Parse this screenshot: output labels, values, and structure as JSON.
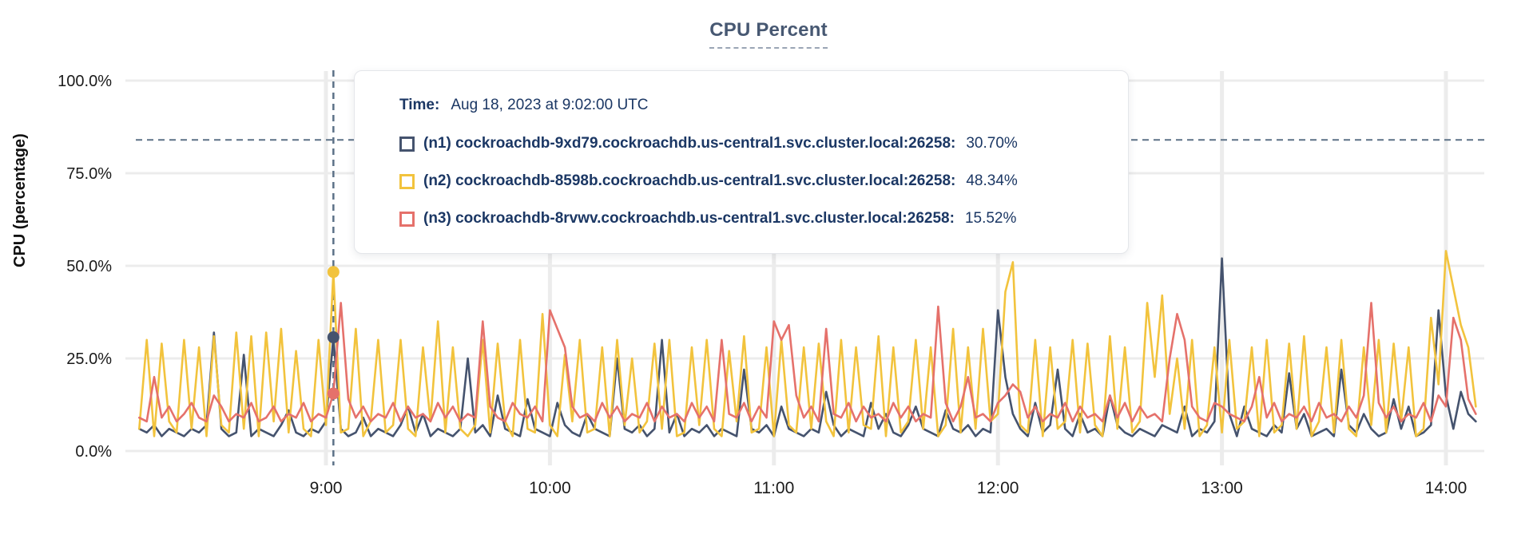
{
  "colors": {
    "accent_slate": "#475872",
    "grid": "#ececec",
    "dashed_guides": "#5c7187",
    "tick_text": "#1a1a1a",
    "tooltip_text": "#1b3764"
  },
  "tooltip": {
    "time_heading": "Time:",
    "time_label": "Aug 18, 2023 at 9:02:00 UTC",
    "rows": [
      {
        "id": "n1",
        "label": "(n1) cockroachdb-9xd79.cockroachdb.us-central1.svc.cluster.local:26258:",
        "value": "30.70%",
        "pct": 30.7,
        "color": "#45536e"
      },
      {
        "id": "n2",
        "label": "(n2) cockroachdb-8598b.cockroachdb.us-central1.svc.cluster.local:26258:",
        "value": "48.34%",
        "pct": 48.34,
        "color": "#f2c33d"
      },
      {
        "id": "n3",
        "label": "(n3) cockroachdb-8rvwv.cockroachdb.us-central1.svc.cluster.local:26258:",
        "value": "15.52%",
        "pct": 15.52,
        "color": "#e5716b"
      }
    ]
  },
  "chart_data": {
    "type": "line",
    "title": "CPU Percent",
    "ylabel": "CPU (percentage)",
    "xlabel": "",
    "ylim": [
      0,
      100
    ],
    "grid": true,
    "legend_position": "tooltip-overlay",
    "y_ticks": [
      {
        "v": 100,
        "label": "100.0%"
      },
      {
        "v": 75,
        "label": "75.0%"
      },
      {
        "v": 50,
        "label": "50.0%"
      },
      {
        "v": 25,
        "label": "25.0%"
      },
      {
        "v": 0,
        "label": "0.0%"
      }
    ],
    "x_ticks": [
      {
        "minutes": 60,
        "label": "9:00"
      },
      {
        "minutes": 120,
        "label": "10:00"
      },
      {
        "minutes": 180,
        "label": "11:00"
      },
      {
        "minutes": 240,
        "label": "12:00"
      },
      {
        "minutes": 300,
        "label": "13:00"
      },
      {
        "minutes": 360,
        "label": "14:00"
      }
    ],
    "x_start_minutes": 10,
    "x_step_minutes": 2,
    "threshold_pct": 84,
    "hover": {
      "minutes": 62,
      "time_label": "Aug 18, 2023 at 9:02:00 UTC"
    },
    "series": [
      {
        "id": "n1",
        "name": "(n1) cockroachdb-9xd79.cockroachdb.us-central1.svc.cluster.local:26258",
        "color": "#45536e",
        "values": [
          6,
          5,
          7,
          4,
          6,
          5,
          4,
          6,
          5,
          7,
          32,
          6,
          4,
          5,
          26,
          4,
          6,
          5,
          4,
          7,
          11,
          5,
          4,
          6,
          5,
          8,
          30.7,
          6,
          4,
          5,
          9,
          4,
          6,
          5,
          4,
          7,
          12,
          5,
          10,
          4,
          6,
          5,
          4,
          6,
          25,
          5,
          7,
          4,
          15,
          6,
          5,
          4,
          14,
          6,
          5,
          4,
          13,
          7,
          5,
          4,
          10,
          6,
          5,
          4,
          25,
          6,
          5,
          7,
          4,
          6,
          30,
          5,
          10,
          4,
          6,
          5,
          7,
          4,
          6,
          5,
          4,
          22,
          6,
          5,
          7,
          4,
          12,
          6,
          5,
          4,
          6,
          5,
          16,
          7,
          4,
          6,
          5,
          4,
          13,
          6,
          10,
          5,
          4,
          7,
          12,
          6,
          5,
          4,
          11,
          6,
          5,
          7,
          4,
          6,
          5,
          38,
          20,
          10,
          6,
          4,
          13,
          5,
          7,
          22,
          6,
          4,
          10,
          5,
          6,
          4,
          15,
          7,
          5,
          4,
          6,
          5,
          4,
          7,
          6,
          5,
          12,
          4,
          6,
          5,
          8,
          52,
          10,
          4,
          12,
          6,
          5,
          4,
          7,
          5,
          21,
          6,
          10,
          4,
          5,
          6,
          4,
          22,
          7,
          5,
          10,
          6,
          4,
          5,
          14,
          6,
          12,
          4,
          5,
          7,
          38,
          15,
          6,
          16,
          10,
          8
        ]
      },
      {
        "id": "n2",
        "name": "(n2) cockroachdb-8598b.cockroachdb.us-central1.svc.cluster.local:26258",
        "color": "#f2c33d",
        "values": [
          6,
          30,
          4,
          29,
          8,
          5,
          30,
          6,
          28,
          4,
          31,
          7,
          5,
          32,
          6,
          31,
          4,
          32,
          8,
          33,
          5,
          27,
          6,
          4,
          30,
          7,
          48.3,
          5,
          6,
          33,
          4,
          8,
          30,
          5,
          7,
          30,
          6,
          4,
          28,
          8,
          35,
          5,
          28,
          6,
          4,
          7,
          30,
          5,
          29,
          8,
          4,
          30,
          6,
          5,
          37,
          7,
          4,
          26,
          8,
          30,
          5,
          6,
          28,
          4,
          30,
          7,
          25,
          5,
          8,
          29,
          6,
          30,
          4,
          5,
          28,
          7,
          30,
          6,
          4,
          27,
          8,
          31,
          5,
          6,
          28,
          4,
          30,
          7,
          5,
          28,
          6,
          29,
          8,
          4,
          30,
          5,
          28,
          7,
          6,
          31,
          4,
          28,
          5,
          8,
          30,
          6,
          28,
          4,
          7,
          33,
          5,
          28,
          6,
          33,
          8,
          10,
          43,
          51,
          7,
          5,
          30,
          4,
          28,
          6,
          8,
          30,
          5,
          29,
          7,
          4,
          31,
          6,
          28,
          5,
          8,
          40,
          20,
          42,
          10,
          25,
          6,
          30,
          4,
          7,
          28,
          5,
          30,
          6,
          8,
          28,
          4,
          30,
          5,
          7,
          29,
          6,
          31,
          4,
          8,
          28,
          5,
          30,
          6,
          4,
          28,
          7,
          30,
          5,
          29,
          8,
          28,
          4,
          6,
          36,
          18,
          54,
          44,
          34,
          28,
          12
        ]
      },
      {
        "id": "n3",
        "name": "(n3) cockroachdb-8rvwv.cockroachdb.us-central1.svc.cluster.local:26258",
        "color": "#e5716b",
        "values": [
          9,
          8,
          20,
          9,
          12,
          8,
          10,
          13,
          9,
          8,
          15,
          12,
          8,
          10,
          9,
          13,
          8,
          9,
          12,
          8,
          10,
          9,
          13,
          8,
          10,
          9,
          15.5,
          40,
          14,
          9,
          12,
          8,
          10,
          9,
          13,
          8,
          12,
          9,
          10,
          8,
          13,
          9,
          12,
          8,
          10,
          9,
          35,
          12,
          9,
          8,
          13,
          10,
          9,
          12,
          8,
          38,
          33,
          28,
          12,
          9,
          10,
          8,
          13,
          9,
          12,
          8,
          10,
          9,
          13,
          8,
          12,
          9,
          10,
          8,
          13,
          9,
          12,
          8,
          30,
          10,
          9,
          13,
          8,
          12,
          9,
          35,
          30,
          34,
          15,
          9,
          12,
          8,
          33,
          10,
          9,
          13,
          8,
          12,
          9,
          10,
          8,
          13,
          9,
          12,
          8,
          10,
          9,
          39,
          13,
          8,
          12,
          20,
          9,
          10,
          8,
          13,
          15,
          18,
          16,
          9,
          12,
          8,
          10,
          9,
          13,
          8,
          12,
          9,
          10,
          8,
          15,
          9,
          13,
          8,
          12,
          9,
          10,
          8,
          25,
          37,
          30,
          12,
          9,
          8,
          13,
          12,
          10,
          9,
          8,
          12,
          20,
          9,
          13,
          8,
          10,
          9,
          12,
          8,
          13,
          9,
          10,
          8,
          12,
          9,
          15,
          40,
          13,
          9,
          12,
          8,
          10,
          9,
          13,
          8,
          15,
          12,
          36,
          30,
          14,
          10
        ]
      }
    ]
  }
}
